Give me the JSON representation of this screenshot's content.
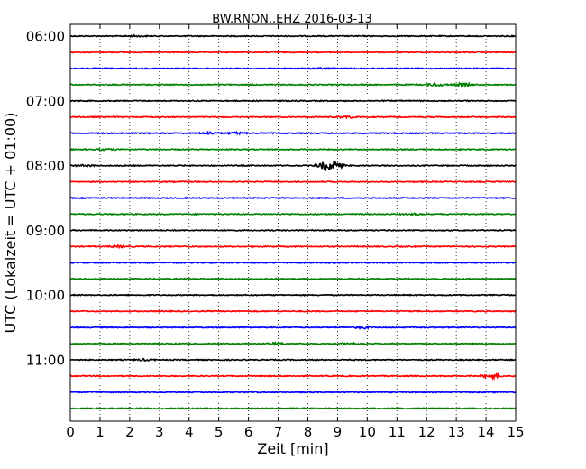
{
  "chart_data": {
    "type": "line",
    "title": "BW.RNON..EHZ 2016-03-13",
    "xlabel": "Zeit  [min]",
    "ylabel": "UTC (Lokalzeit = UTC + 01:00)",
    "xlim": [
      0,
      15
    ],
    "xticks": [
      "0",
      "1",
      "2",
      "3",
      "4",
      "5",
      "6",
      "7",
      "8",
      "9",
      "10",
      "11",
      "12",
      "13",
      "14",
      "15"
    ],
    "yticks": [
      {
        "label": "06:00",
        "hour_offset": 0
      },
      {
        "label": "07:00",
        "hour_offset": 1
      },
      {
        "label": "08:00",
        "hour_offset": 2
      },
      {
        "label": "09:00",
        "hour_offset": 3
      },
      {
        "label": "10:00",
        "hour_offset": 4
      },
      {
        "label": "11:00",
        "hour_offset": 5
      }
    ],
    "grid": "vertical dotted",
    "trace_interval_minutes": 15,
    "trace_color_cycle": [
      "#000000",
      "#ff0000",
      "#0000ff",
      "#008000"
    ],
    "traces": [
      {
        "start": "06:00",
        "events": [
          {
            "t": 2.2,
            "amp": 0.6
          }
        ]
      },
      {
        "start": "06:15",
        "events": []
      },
      {
        "start": "06:30",
        "events": [
          {
            "t": 8.5,
            "amp": 0.5
          }
        ]
      },
      {
        "start": "06:45",
        "events": [
          {
            "t": 12.3,
            "amp": 1.3
          },
          {
            "t": 13.2,
            "amp": 1.6
          }
        ]
      },
      {
        "start": "07:00",
        "events": []
      },
      {
        "start": "07:15",
        "events": [
          {
            "t": 9.3,
            "amp": 1.0
          }
        ]
      },
      {
        "start": "07:30",
        "events": [
          {
            "t": 4.7,
            "amp": 1.1
          },
          {
            "t": 5.6,
            "amp": 0.9
          }
        ]
      },
      {
        "start": "07:45",
        "events": [
          {
            "t": 1.2,
            "amp": 0.6
          }
        ]
      },
      {
        "start": "08:00",
        "events": [
          {
            "t": 0.5,
            "amp": 0.8
          },
          {
            "t": 8.6,
            "amp": 4.0
          },
          {
            "t": 8.9,
            "amp": 3.5
          }
        ]
      },
      {
        "start": "08:15",
        "events": []
      },
      {
        "start": "08:30",
        "events": []
      },
      {
        "start": "08:45",
        "events": [
          {
            "t": 11.6,
            "amp": 0.5
          }
        ]
      },
      {
        "start": "09:00",
        "events": []
      },
      {
        "start": "09:15",
        "events": [
          {
            "t": 1.6,
            "amp": 1.0
          }
        ]
      },
      {
        "start": "09:30",
        "events": []
      },
      {
        "start": "09:45",
        "events": []
      },
      {
        "start": "10:00",
        "events": []
      },
      {
        "start": "10:15",
        "events": []
      },
      {
        "start": "10:30",
        "events": [
          {
            "t": 9.9,
            "amp": 1.2
          }
        ]
      },
      {
        "start": "10:45",
        "events": [
          {
            "t": 7.0,
            "amp": 1.0
          },
          {
            "t": 9.5,
            "amp": 0.9
          }
        ]
      },
      {
        "start": "11:00",
        "events": [
          {
            "t": 2.5,
            "amp": 0.8
          }
        ]
      },
      {
        "start": "11:15",
        "events": [
          {
            "t": 14.2,
            "amp": 2.2
          }
        ]
      },
      {
        "start": "11:30",
        "events": []
      },
      {
        "start": "11:45",
        "events": []
      }
    ]
  }
}
